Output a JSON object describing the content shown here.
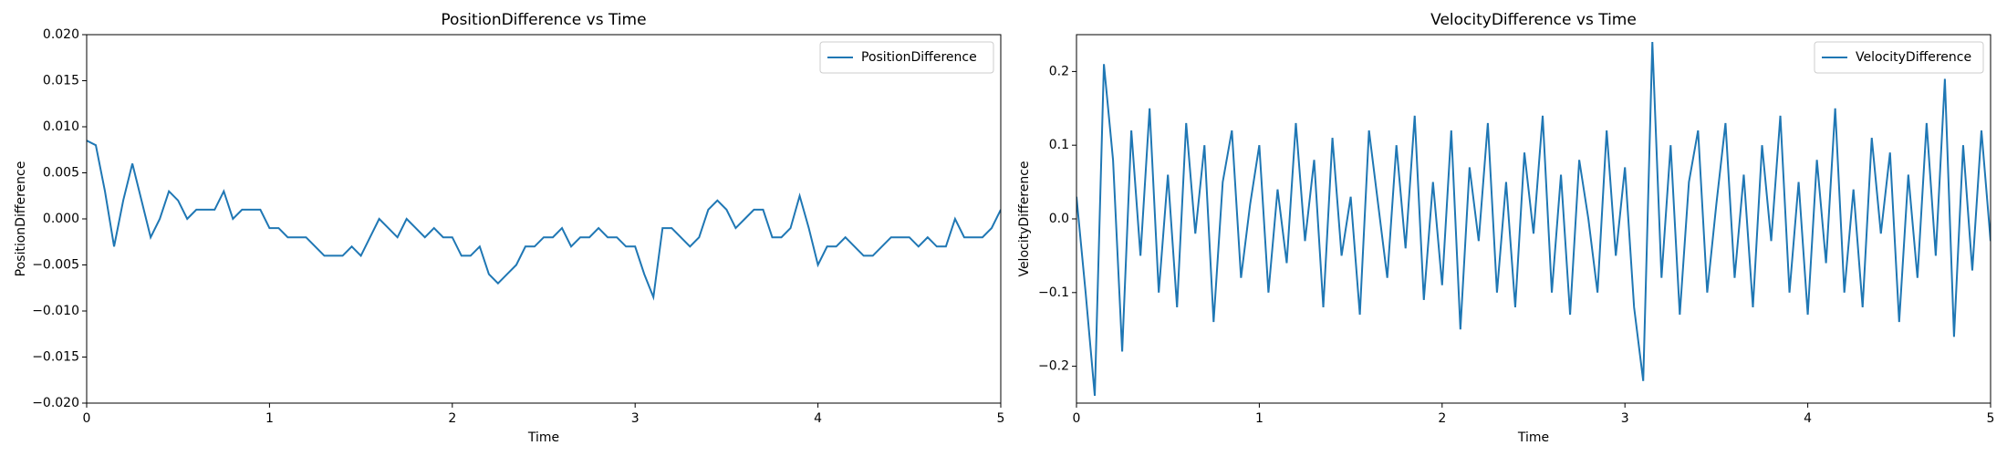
{
  "chart_data": [
    {
      "type": "line",
      "title": "PositionDifference vs Time",
      "x_label": "Time",
      "y_label": "PositionDifference",
      "legend": "upper right",
      "grid": false,
      "xlim": [
        0,
        5
      ],
      "ylim": [
        -0.02,
        0.02
      ],
      "xticks": [
        0,
        1,
        2,
        3,
        4,
        5
      ],
      "yticks": [
        {
          "value": -0.02,
          "label": "−0.020"
        },
        {
          "value": -0.015,
          "label": "−0.015"
        },
        {
          "value": -0.01,
          "label": "−0.010"
        },
        {
          "value": -0.005,
          "label": "−0.005"
        },
        {
          "value": 0,
          "label": "0.000"
        },
        {
          "value": 0.005,
          "label": "0.005"
        },
        {
          "value": 0.01,
          "label": "0.010"
        },
        {
          "value": 0.015,
          "label": "0.015"
        },
        {
          "value": 0.02,
          "label": "0.020"
        }
      ],
      "x": [
        0,
        0.05,
        0.1,
        0.15,
        0.2,
        0.25,
        0.3,
        0.35,
        0.4,
        0.45,
        0.5,
        0.55,
        0.6,
        0.65,
        0.7,
        0.75,
        0.8,
        0.85,
        0.9,
        0.95,
        1,
        1.05,
        1.1,
        1.15,
        1.2,
        1.25,
        1.3,
        1.35,
        1.4,
        1.45,
        1.5,
        1.55,
        1.6,
        1.65,
        1.7,
        1.75,
        1.8,
        1.85,
        1.9,
        1.95,
        2,
        2.05,
        2.1,
        2.15,
        2.2,
        2.25,
        2.3,
        2.35,
        2.4,
        2.45,
        2.5,
        2.55,
        2.6,
        2.65,
        2.7,
        2.75,
        2.8,
        2.85,
        2.9,
        2.95,
        3,
        3.05,
        3.1,
        3.15,
        3.2,
        3.25,
        3.3,
        3.35,
        3.4,
        3.45,
        3.5,
        3.55,
        3.6,
        3.65,
        3.7,
        3.75,
        3.8,
        3.85,
        3.9,
        3.95,
        4,
        4.05,
        4.1,
        4.15,
        4.2,
        4.25,
        4.3,
        4.35,
        4.4,
        4.45,
        4.5,
        4.55,
        4.6,
        4.65,
        4.7,
        4.75,
        4.8,
        4.85,
        4.9,
        4.95,
        5
      ],
      "series": [
        {
          "name": "PositionDifference",
          "color": "#1f77b4",
          "values": [
            0.0085,
            0.008,
            0.003,
            -0.003,
            0.002,
            0.006,
            0.002,
            -0.002,
            0.0,
            0.003,
            0.002,
            0.0,
            0.001,
            0.001,
            0.001,
            0.003,
            0.0,
            0.001,
            0.001,
            0.001,
            -0.001,
            -0.001,
            -0.002,
            -0.002,
            -0.002,
            -0.003,
            -0.004,
            -0.004,
            -0.004,
            -0.003,
            -0.004,
            -0.002,
            0.0,
            -0.001,
            -0.002,
            0.0,
            -0.001,
            -0.002,
            -0.001,
            -0.002,
            -0.002,
            -0.004,
            -0.004,
            -0.003,
            -0.006,
            -0.007,
            -0.006,
            -0.005,
            -0.003,
            -0.003,
            -0.002,
            -0.002,
            -0.001,
            -0.003,
            -0.002,
            -0.002,
            -0.001,
            -0.002,
            -0.002,
            -0.003,
            -0.003,
            -0.006,
            -0.0085,
            -0.001,
            -0.001,
            -0.002,
            -0.003,
            -0.002,
            0.001,
            0.002,
            0.001,
            -0.001,
            0.0,
            0.001,
            0.001,
            -0.002,
            -0.002,
            -0.001,
            0.0025,
            -0.001,
            -0.005,
            -0.003,
            -0.003,
            -0.002,
            -0.003,
            -0.004,
            -0.004,
            -0.003,
            -0.002,
            -0.002,
            -0.002,
            -0.003,
            -0.002,
            -0.003,
            -0.003,
            0.0,
            -0.002,
            -0.002,
            -0.002,
            -0.001,
            0.001
          ]
        }
      ]
    },
    {
      "type": "line",
      "title": "VelocityDifference vs Time",
      "x_label": "Time",
      "y_label": "VelocityDifference",
      "legend": "upper right",
      "grid": false,
      "xlim": [
        0,
        5
      ],
      "ylim": [
        -0.25,
        0.25
      ],
      "xticks": [
        0,
        1,
        2,
        3,
        4,
        5
      ],
      "yticks": [
        {
          "value": -0.2,
          "label": "−0.2"
        },
        {
          "value": -0.1,
          "label": "−0.1"
        },
        {
          "value": 0,
          "label": "0.0"
        },
        0.1,
        0.2
      ],
      "x": [
        0,
        0.05,
        0.1,
        0.15,
        0.2,
        0.25,
        0.3,
        0.35,
        0.4,
        0.45,
        0.5,
        0.55,
        0.6,
        0.65,
        0.7,
        0.75,
        0.8,
        0.85,
        0.9,
        0.95,
        1,
        1.05,
        1.1,
        1.15,
        1.2,
        1.25,
        1.3,
        1.35,
        1.4,
        1.45,
        1.5,
        1.55,
        1.6,
        1.65,
        1.7,
        1.75,
        1.8,
        1.85,
        1.9,
        1.95,
        2,
        2.05,
        2.1,
        2.15,
        2.2,
        2.25,
        2.3,
        2.35,
        2.4,
        2.45,
        2.5,
        2.55,
        2.6,
        2.65,
        2.7,
        2.75,
        2.8,
        2.85,
        2.9,
        2.95,
        3,
        3.05,
        3.1,
        3.15,
        3.2,
        3.25,
        3.3,
        3.35,
        3.4,
        3.45,
        3.5,
        3.55,
        3.6,
        3.65,
        3.7,
        3.75,
        3.8,
        3.85,
        3.9,
        3.95,
        4,
        4.05,
        4.1,
        4.15,
        4.2,
        4.25,
        4.3,
        4.35,
        4.4,
        4.45,
        4.5,
        4.55,
        4.6,
        4.65,
        4.7,
        4.75,
        4.8,
        4.85,
        4.9,
        4.95,
        5
      ],
      "series": [
        {
          "name": "VelocityDifference",
          "color": "#1f77b4",
          "values": [
            0.03,
            -0.1,
            -0.24,
            0.21,
            0.08,
            -0.18,
            0.12,
            -0.05,
            0.15,
            -0.1,
            0.06,
            -0.12,
            0.13,
            -0.02,
            0.1,
            -0.14,
            0.05,
            0.12,
            -0.08,
            0.02,
            0.1,
            -0.1,
            0.04,
            -0.06,
            0.13,
            -0.03,
            0.08,
            -0.12,
            0.11,
            -0.05,
            0.03,
            -0.13,
            0.12,
            0.02,
            -0.08,
            0.1,
            -0.04,
            0.14,
            -0.11,
            0.05,
            -0.09,
            0.12,
            -0.15,
            0.07,
            -0.03,
            0.13,
            -0.1,
            0.05,
            -0.12,
            0.09,
            -0.02,
            0.14,
            -0.1,
            0.06,
            -0.13,
            0.08,
            0.0,
            -0.1,
            0.12,
            -0.05,
            0.07,
            -0.12,
            -0.22,
            0.24,
            -0.08,
            0.1,
            -0.13,
            0.05,
            0.12,
            -0.1,
            0.02,
            0.13,
            -0.08,
            0.06,
            -0.12,
            0.1,
            -0.03,
            0.14,
            -0.1,
            0.05,
            -0.13,
            0.08,
            -0.06,
            0.15,
            -0.1,
            0.04,
            -0.12,
            0.11,
            -0.02,
            0.09,
            -0.14,
            0.06,
            -0.08,
            0.13,
            -0.05,
            0.19,
            -0.16,
            0.1,
            -0.07,
            0.12,
            -0.03
          ]
        }
      ]
    }
  ]
}
